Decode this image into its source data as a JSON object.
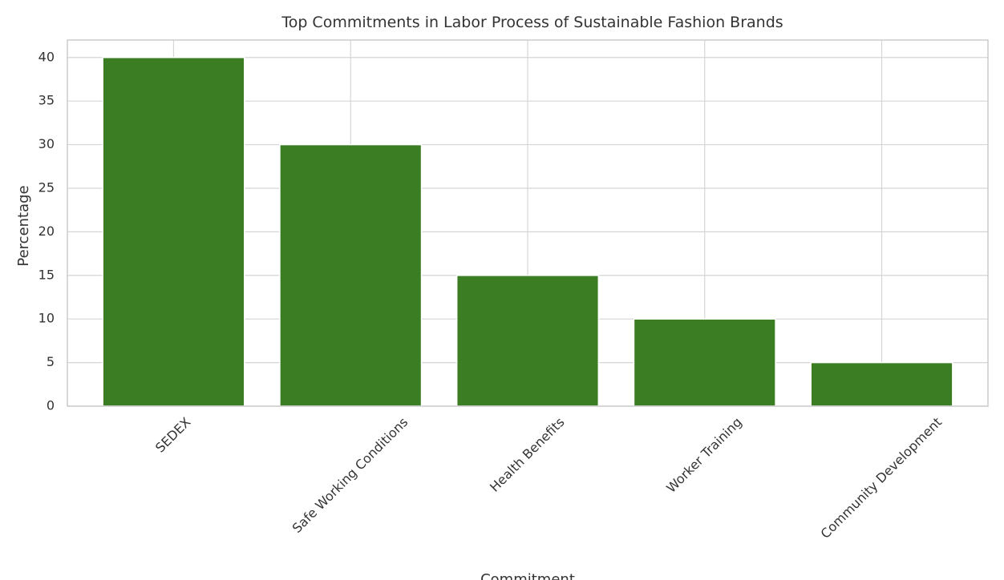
{
  "chart_data": {
    "type": "bar",
    "title": "Top Commitments in Labor Process of Sustainable Fashion Brands",
    "x_label": "Commitment",
    "y_label": "Percentage",
    "categories": [
      "SEDEX",
      "Safe Working Conditions",
      "Health Benefits",
      "Worker Training",
      "Community Development"
    ],
    "values": [
      40,
      30,
      15,
      10,
      5
    ],
    "color": "#3a7d22",
    "ylim": [
      0,
      42
    ],
    "yticks": [
      0,
      5,
      10,
      15,
      20,
      25,
      30,
      35,
      40
    ],
    "grid": true
  }
}
